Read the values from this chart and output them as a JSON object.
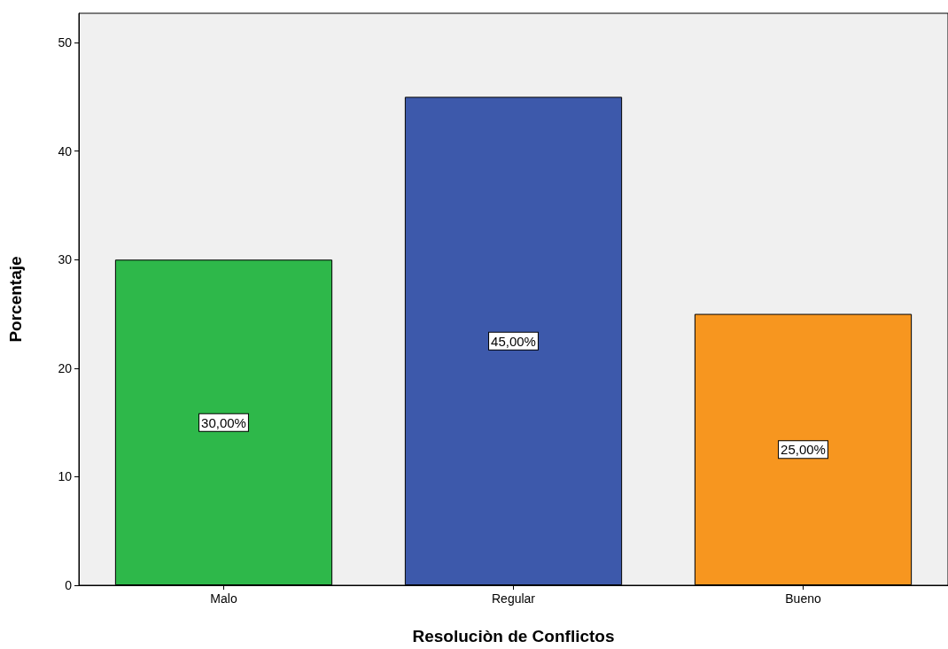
{
  "chart_data": {
    "type": "bar",
    "xlabel": "Resoluciòn de Conflictos",
    "ylabel": "Porcentaje",
    "categories": [
      "Malo",
      "Regular",
      "Bueno"
    ],
    "values": [
      30,
      45,
      25
    ],
    "colors": [
      "#2eb84a",
      "#3d59ab",
      "#f7961f"
    ],
    "value_labels": [
      "30,00%",
      "45,00%",
      "25,00%"
    ],
    "ylim": [
      0,
      52.7
    ],
    "yticks": [
      0,
      10,
      20,
      30,
      40,
      50
    ]
  }
}
